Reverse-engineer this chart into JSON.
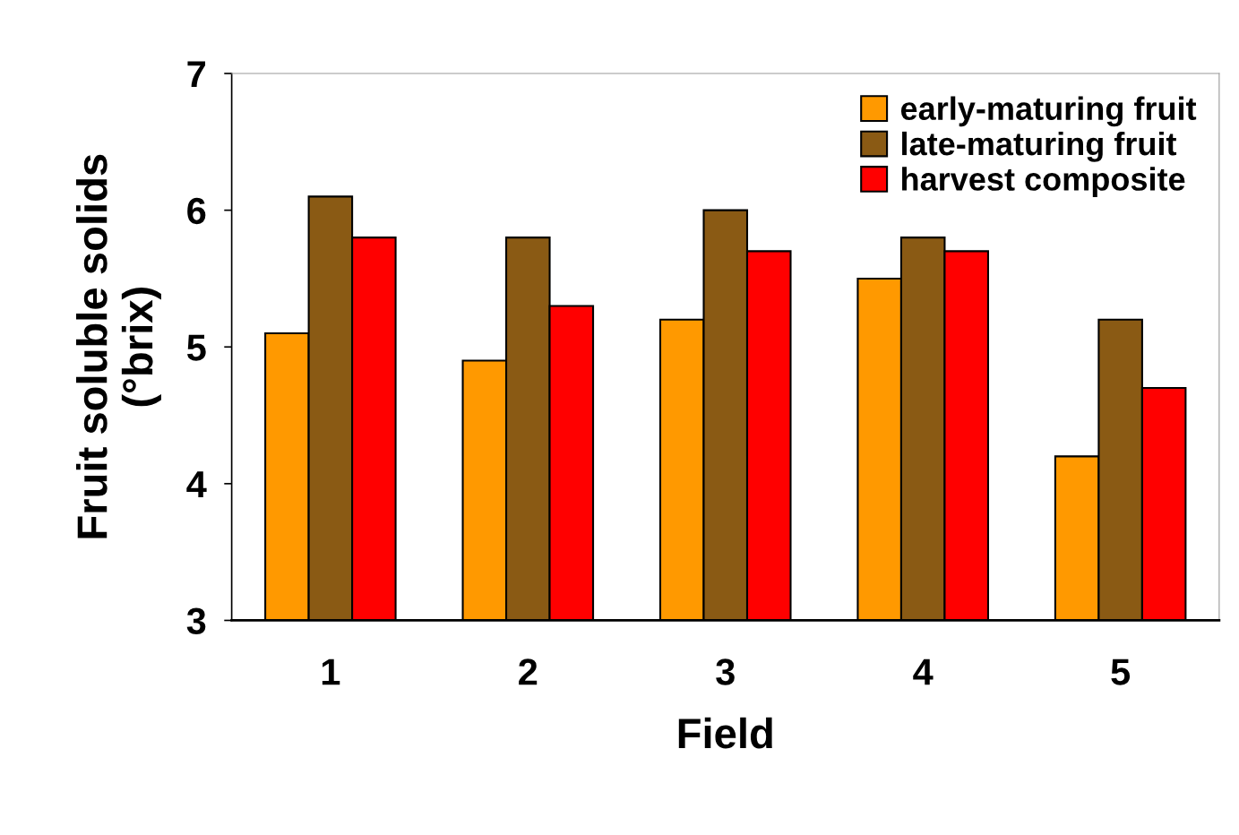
{
  "chart_data": {
    "type": "bar",
    "xlabel": "Field",
    "ylabel": "Fruit soluble solids\n(°brix)",
    "categories": [
      "1",
      "2",
      "3",
      "4",
      "5"
    ],
    "series": [
      {
        "name": "early-maturing fruit",
        "color": "#ff9900",
        "values": [
          5.1,
          4.9,
          5.2,
          5.5,
          4.2
        ]
      },
      {
        "name": "late-maturing fruit",
        "color": "#8a5a14",
        "values": [
          6.1,
          5.8,
          6.0,
          5.8,
          5.2
        ]
      },
      {
        "name": "harvest composite",
        "color": "#ff0000",
        "values": [
          5.8,
          5.3,
          5.7,
          5.7,
          4.7
        ]
      }
    ],
    "ylim": [
      3,
      7
    ],
    "yticks": [
      3,
      4,
      5,
      6,
      7
    ],
    "grid": false,
    "legend": "top right"
  }
}
